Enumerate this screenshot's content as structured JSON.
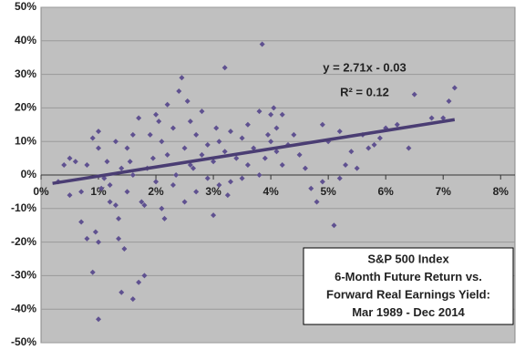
{
  "chart_data": {
    "type": "scatter",
    "series": [
      {
        "name": "6-Month Future Return",
        "color": "#5f5190",
        "x": [
          0.3,
          0.4,
          0.5,
          0.6,
          0.5,
          0.7,
          0.7,
          0.8,
          0.8,
          0.9,
          0.9,
          0.95,
          1.0,
          1.0,
          1.0,
          1.0,
          1.05,
          1.1,
          1.15,
          1.2,
          1.2,
          1.3,
          1.3,
          1.35,
          1.35,
          1.4,
          1.4,
          1.5,
          1.5,
          1.55,
          1.6,
          1.6,
          1.6,
          1.7,
          1.7,
          1.75,
          1.8,
          1.8,
          1.85,
          1.9,
          1.95,
          2.0,
          2.0,
          2.1,
          2.1,
          2.2,
          2.2,
          2.3,
          2.3,
          2.35,
          2.4,
          2.45,
          2.5,
          2.5,
          2.55,
          2.6,
          2.6,
          2.7,
          2.7,
          2.8,
          2.8,
          2.9,
          2.9,
          3.0,
          3.0,
          3.05,
          3.1,
          3.1,
          3.2,
          3.2,
          3.3,
          3.3,
          3.4,
          3.5,
          3.5,
          3.6,
          3.6,
          3.7,
          3.8,
          3.8,
          3.85,
          3.9,
          4.0,
          4.0,
          4.1,
          4.1,
          4.2,
          4.2,
          4.3,
          4.4,
          4.5,
          4.6,
          4.7,
          4.8,
          4.9,
          4.9,
          5.0,
          5.1,
          5.2,
          5.3,
          5.4,
          5.5,
          5.6,
          5.7,
          5.8,
          5.9,
          6.0,
          6.2,
          6.4,
          6.5,
          6.8,
          7.1,
          7.2,
          7.0,
          5.2,
          4.05,
          3.95,
          2.05,
          2.15,
          1.45,
          2.65,
          3.25
        ],
        "values": [
          -2,
          3,
          -6,
          4,
          5,
          -5,
          -14,
          3,
          -19,
          -29,
          11,
          -17,
          -43,
          -20,
          13,
          8,
          -4,
          -1,
          4,
          -8,
          -3,
          10,
          -9,
          -19,
          -13,
          -35,
          2,
          8,
          -5,
          4,
          -37,
          12,
          0,
          17,
          -32,
          -8,
          -30,
          -9,
          2,
          12,
          5,
          18,
          -2,
          10,
          -10,
          21,
          6,
          14,
          -3,
          0,
          25,
          29,
          8,
          -8,
          22,
          16,
          3,
          12,
          -5,
          19,
          6,
          -1,
          9,
          4,
          -12,
          14,
          10,
          -3,
          32,
          7,
          13,
          -2,
          5,
          11,
          -1,
          15,
          3,
          8,
          19,
          0,
          39,
          5,
          18,
          10,
          7,
          14,
          18,
          3,
          9,
          12,
          6,
          2,
          -4,
          -8,
          15,
          -2,
          10,
          -15,
          -1,
          3,
          7,
          2,
          12,
          8,
          9,
          11,
          14,
          15,
          8,
          24,
          17,
          22,
          26,
          17,
          13,
          20,
          12,
          16,
          -13,
          -22,
          2,
          -6
        ]
      }
    ],
    "trendline": {
      "color": "#4a3d73",
      "x": [
        0.2,
        7.2
      ],
      "values": [
        -2.5,
        16.5
      ]
    },
    "equation": "y = 2.71x - 0.03",
    "r_squared": "R² = 0.12",
    "annotation_box": [
      "S&P 500 Index",
      "6-Month Future Return vs.",
      "Forward Real Earnings Yield:",
      "Mar 1989 - Dec 2014"
    ],
    "xlim": [
      0,
      8.25
    ],
    "ylim": [
      -50,
      50
    ],
    "xticks": [
      {
        "value": 0,
        "label": "0%"
      },
      {
        "value": 1,
        "label": "1%"
      },
      {
        "value": 2,
        "label": "2%"
      },
      {
        "value": 3,
        "label": "3%"
      },
      {
        "value": 4,
        "label": "4%"
      },
      {
        "value": 5,
        "label": "5%"
      },
      {
        "value": 6,
        "label": "6%"
      },
      {
        "value": 7,
        "label": "7%"
      },
      {
        "value": 8,
        "label": "8%"
      }
    ],
    "yticks": [
      {
        "value": -50,
        "label": "-50%"
      },
      {
        "value": -40,
        "label": "-40%"
      },
      {
        "value": -30,
        "label": "-30%"
      },
      {
        "value": -20,
        "label": "-20%"
      },
      {
        "value": -10,
        "label": "-10%"
      },
      {
        "value": 0,
        "label": "0%"
      },
      {
        "value": 10,
        "label": "10%"
      },
      {
        "value": 20,
        "label": "20%"
      },
      {
        "value": 30,
        "label": "30%"
      },
      {
        "value": 40,
        "label": "40%"
      },
      {
        "value": 50,
        "label": "50%"
      }
    ],
    "grid": true
  }
}
